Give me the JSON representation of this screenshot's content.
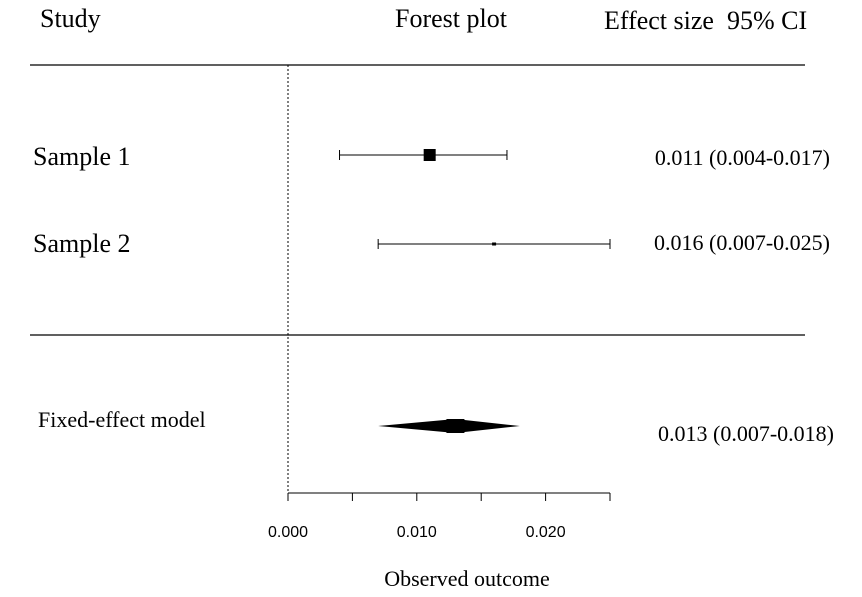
{
  "chart_data": {
    "type": "forest",
    "headers": {
      "study": "Study",
      "plot": "Forest plot",
      "effect": "Effect size  95% CI"
    },
    "studies": [
      {
        "label": "Sample 1",
        "estimate": 0.011,
        "ci": [
          0.004,
          0.017
        ],
        "text": "0.011 (0.004-0.017)",
        "marker": "large"
      },
      {
        "label": "Sample 2",
        "estimate": 0.016,
        "ci": [
          0.007,
          0.025
        ],
        "text": "0.016 (0.007-0.025)",
        "marker": "small"
      }
    ],
    "summary": {
      "label": "Fixed-effect model",
      "estimate": 0.013,
      "ci": [
        0.007,
        0.018
      ],
      "text": "0.013 (0.007-0.018)"
    },
    "reference_line": 0,
    "xaxis": {
      "label": "Observed outcome",
      "range": [
        0,
        0.025
      ],
      "ticks": [
        0,
        0.005,
        0.01,
        0.015,
        0.02,
        0.025
      ],
      "tick_labels": [
        "0.000",
        "0.010",
        "0.020"
      ]
    }
  }
}
